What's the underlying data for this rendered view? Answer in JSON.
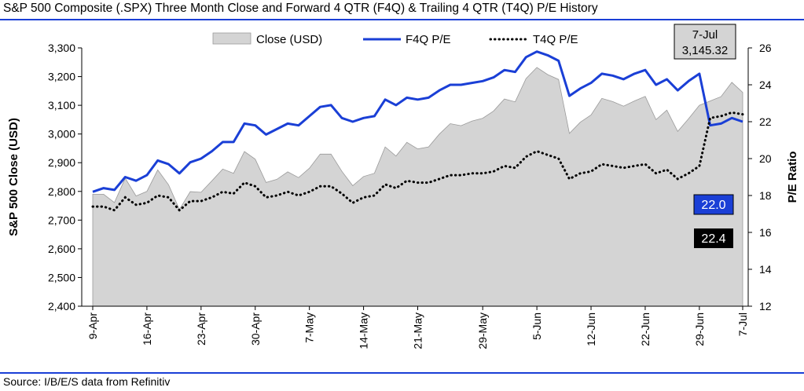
{
  "header": {
    "title": "S&P 500 Composite (.SPX) Three Month Close and Forward 4 QTR (F4Q) & Trailing 4 QTR (T4Q) P/E History"
  },
  "footer": {
    "source": "Source: I/B/E/S data from Refinitiv"
  },
  "chart_data": {
    "type": "area",
    "xlabel": "",
    "ylabel": "S&P 500 Close (USD)",
    "y2label": "P/E Ratio",
    "ylim": [
      2400,
      3300
    ],
    "y2lim": [
      12,
      26
    ],
    "yticks": [
      "2,400",
      "2,500",
      "2,600",
      "2,700",
      "2,800",
      "2,900",
      "3,000",
      "3,100",
      "3,200",
      "3,300"
    ],
    "y2ticks": [
      "12",
      "14",
      "16",
      "18",
      "20",
      "22",
      "24",
      "26"
    ],
    "xticks": [
      {
        "label": "9-Apr",
        "index": 0
      },
      {
        "label": "16-Apr",
        "index": 5
      },
      {
        "label": "23-Apr",
        "index": 10
      },
      {
        "label": "30-Apr",
        "index": 15
      },
      {
        "label": "7-May",
        "index": 20
      },
      {
        "label": "14-May",
        "index": 25
      },
      {
        "label": "21-May",
        "index": 30
      },
      {
        "label": "29-May",
        "index": 36
      },
      {
        "label": "5-Jun",
        "index": 41
      },
      {
        "label": "12-Jun",
        "index": 46
      },
      {
        "label": "22-Jun",
        "index": 51
      },
      {
        "label": "29-Jun",
        "index": 56
      },
      {
        "label": "7-Jul",
        "index": 60
      }
    ],
    "legend": [
      {
        "label": "Close (USD)",
        "style": "area",
        "color": "#d4d4d4"
      },
      {
        "label": "F4Q P/E",
        "style": "line",
        "color": "#1a3fd6"
      },
      {
        "label": "T4Q P/E",
        "style": "dotted",
        "color": "#000000"
      }
    ],
    "series": [
      {
        "name": "Close (USD)",
        "axis": "left",
        "type": "area",
        "values": [
          2790,
          2790,
          2761,
          2846,
          2784,
          2800,
          2875,
          2823,
          2737,
          2799,
          2797,
          2837,
          2878,
          2863,
          2939,
          2912,
          2831,
          2842,
          2868,
          2848,
          2881,
          2930,
          2930,
          2870,
          2820,
          2852,
          2863,
          2955,
          2923,
          2971,
          2948,
          2955,
          3000,
          3036,
          3029,
          3045,
          3055,
          3080,
          3122,
          3112,
          3193,
          3232,
          3207,
          3190,
          3002,
          3041,
          3066,
          3124,
          3113,
          3097,
          3115,
          3131,
          3050,
          3083,
          3009,
          3053,
          3100,
          3115,
          3130,
          3180,
          3145
        ]
      },
      {
        "name": "F4Q P/E",
        "axis": "right",
        "type": "line",
        "values": [
          18.2,
          18.4,
          18.3,
          19.0,
          18.8,
          19.1,
          19.9,
          19.7,
          19.2,
          19.8,
          20.0,
          20.4,
          20.9,
          20.9,
          21.9,
          21.8,
          21.3,
          21.6,
          21.9,
          21.8,
          22.3,
          22.8,
          22.9,
          22.2,
          22.0,
          22.2,
          22.3,
          23.2,
          22.9,
          23.3,
          23.2,
          23.3,
          23.7,
          24.0,
          24.0,
          24.1,
          24.2,
          24.4,
          24.8,
          24.7,
          25.5,
          25.8,
          25.6,
          25.3,
          23.4,
          23.8,
          24.1,
          24.6,
          24.5,
          24.3,
          24.6,
          24.8,
          24.0,
          24.3,
          23.7,
          24.2,
          24.6,
          21.8,
          21.9,
          22.2,
          22.0
        ]
      },
      {
        "name": "T4Q P/E",
        "axis": "right",
        "type": "dotted",
        "values": [
          17.4,
          17.4,
          17.2,
          17.9,
          17.5,
          17.6,
          18.0,
          17.9,
          17.2,
          17.7,
          17.7,
          17.9,
          18.2,
          18.1,
          18.7,
          18.5,
          17.9,
          18.0,
          18.2,
          18.0,
          18.2,
          18.5,
          18.5,
          18.1,
          17.6,
          17.9,
          18.0,
          18.6,
          18.4,
          18.8,
          18.7,
          18.7,
          18.9,
          19.1,
          19.1,
          19.2,
          19.2,
          19.3,
          19.6,
          19.5,
          20.1,
          20.4,
          20.2,
          20.0,
          18.9,
          19.2,
          19.3,
          19.7,
          19.6,
          19.5,
          19.6,
          19.7,
          19.2,
          19.4,
          18.9,
          19.2,
          19.6,
          22.2,
          22.3,
          22.5,
          22.4
        ]
      }
    ],
    "callouts": {
      "date": "7-Jul",
      "close": "3,145.32",
      "f4q_value": "22.0",
      "t4q_value": "22.4"
    }
  }
}
